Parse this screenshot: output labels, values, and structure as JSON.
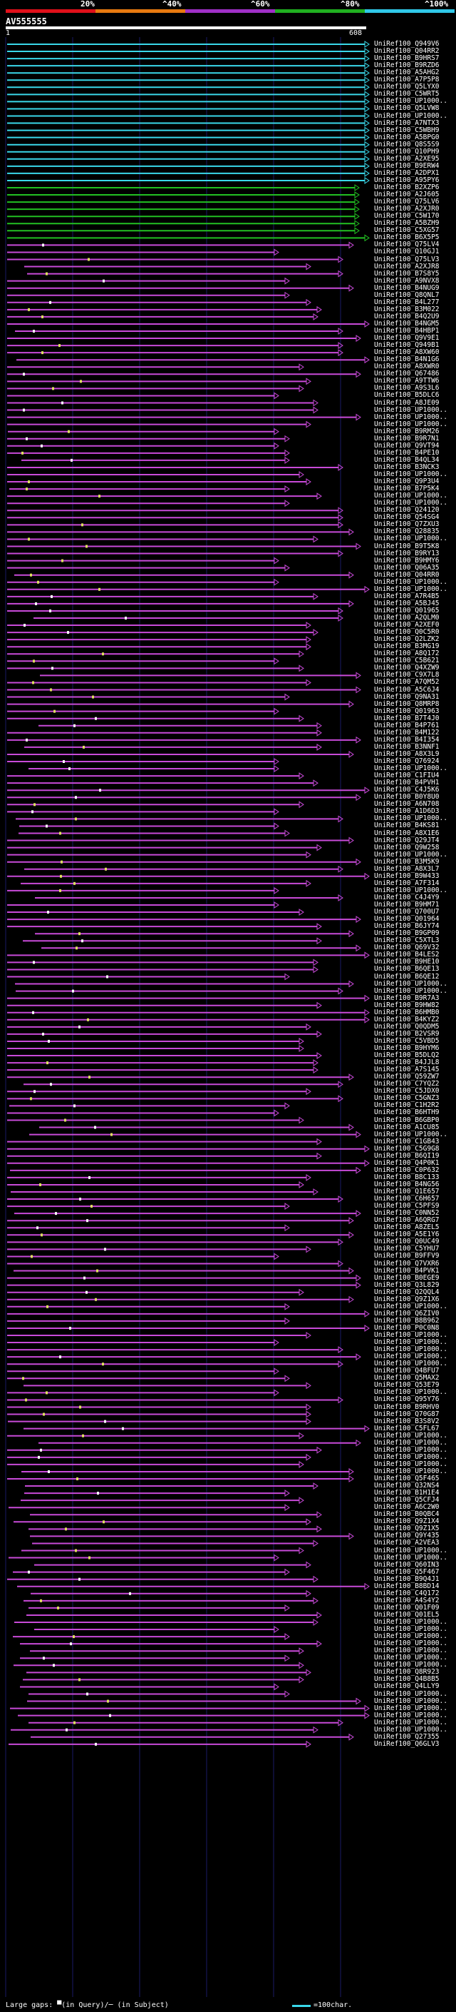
{
  "scale": {
    "labels": [
      "20%",
      "^40%",
      "^60%",
      "^80%",
      "^100%"
    ],
    "colors": [
      "#e0101a",
      "#e87a10",
      "#a030c8",
      "#20b020",
      "#30c8e8"
    ]
  },
  "query": {
    "name": "AV555555",
    "start": "1",
    "end": "608"
  },
  "hits": [
    "UniRef100_Q949V6",
    "UniRef100_Q04RR2",
    "UniRef100_B9HRS7",
    "UniRef100_B9RZD6",
    "UniRef100_A5AHG2",
    "UniRef100_A7P5P8",
    "UniRef100_Q5LYX0",
    "UniRef100_C5WRT5",
    "UniRef100_UP1000..",
    "UniRef100_Q5LVW8",
    "UniRef100_UP1000..",
    "UniRef100_A7NTX3",
    "UniRef100_C5WBH9",
    "UniRef100_A5BPG0",
    "UniRef100_Q8S5S9",
    "UniRef100_Q10PH9",
    "UniRef100_A2XE95",
    "UniRef100_B9ERW4",
    "UniRef100_A2DPX1",
    "UniRef100_A95PY6",
    "UniRef100_B2XZP6",
    "UniRef100_A2J605",
    "UniRef100_Q75LV6",
    "UniRef100_A2XJR0",
    "UniRef100_C5W170",
    "UniRef100_A5BZH9",
    "UniRef100_C5XG57",
    "UniRef100_B6X5P5",
    "UniRef100_Q75LV4",
    "UniRef100_Q10GJ1",
    "UniRef100_Q75LV3",
    "UniRef100_A2XJR8",
    "UniRef100_B7S8Y5",
    "UniRef100_A9NVX8",
    "UniRef100_B4NUG9",
    "UniRef100_Q8QNL7",
    "UniRef100_B4L277",
    "UniRef100_B3M022",
    "UniRef100_B4Q2U9",
    "UniRef100_B4NGM5",
    "UniRef100_B4HBP1",
    "UniRef100_Q9V9E1",
    "UniRef100_Q949B1",
    "UniRef100_A8XW60",
    "UniRef100_B4N1G6",
    "UniRef100_A8XWR0",
    "UniRef100_Q67486",
    "UniRef100_A9TTW6",
    "UniRef100_A9S3L6",
    "UniRef100_B5DLC6",
    "UniRef100_A8JE09",
    "UniRef100_UP1000..",
    "UniRef100_UP1000..",
    "UniRef100_UP1000..",
    "UniRef100_B9RM26",
    "UniRef100_B9R7N1",
    "UniRef100_Q9VT94",
    "UniRef100_B4PE10",
    "UniRef100_B4QL34",
    "UniRef100_B3NCK3",
    "UniRef100_UP1000..",
    "UniRef100_Q9P3U4",
    "UniRef100_B7P5K4",
    "UniRef100_UP1000..",
    "UniRef100_UP1000..",
    "UniRef100_Q24120",
    "UniRef100_Q54SG4",
    "UniRef100_Q7ZXU3",
    "UniRef100_Q28835",
    "UniRef100_UP1000..",
    "UniRef100_B9T5K8",
    "UniRef100_B9RY13",
    "UniRef100_B9HMY6",
    "UniRef100_Q06A35",
    "UniRef100_Q04RR0",
    "UniRef100_UP1000..",
    "UniRef100_UP1000..",
    "UniRef100_A7R4B5",
    "UniRef100_A5BJ45",
    "UniRef100_Q01965",
    "UniRef100_A2QLM0",
    "UniRef100_A2XEF0",
    "UniRef100_Q0C5R0",
    "UniRef100_Q2LZK2",
    "UniRef100_B3MG19",
    "UniRef100_A8Q172",
    "UniRef100_C5B621",
    "UniRef100_Q4XZW9",
    "UniRef100_C9X7L8",
    "UniRef100_A7QM52",
    "UniRef100_A5C6J4",
    "UniRef100_Q9NA31",
    "UniRef100_Q8MRP8",
    "UniRef100_Q01963",
    "UniRef100_B7T4J0",
    "UniRef100_B4P761",
    "UniRef100_B4M122",
    "UniRef100_B4I354",
    "UniRef100_B3NNF1",
    "UniRef100_A8X3L9",
    "UniRef100_Q76924",
    "UniRef100_UP1000..",
    "UniRef100_C1FIU4",
    "UniRef100_B4PVH1",
    "UniRef100_C4J5K6",
    "UniRef100_B0Y8U0",
    "UniRef100_A6N708",
    "UniRef100_A1D6D3",
    "UniRef100_UP1000..",
    "UniRef100_B4KS81",
    "UniRef100_A8X1E6",
    "UniRef100_Q29JT4",
    "UniRef100_Q9W258",
    "UniRef100_UP1000..",
    "UniRef100_B3M5K9",
    "UniRef100_A8X3L7",
    "UniRef100_B9W433",
    "UniRef100_A7F314",
    "UniRef100_UP1000..",
    "UniRef100_C4J4Y9",
    "UniRef100_B9HM71",
    "UniRef100_Q700U7",
    "UniRef100_Q01964",
    "UniRef100_B6JY74",
    "UniRef100_B9GP09",
    "UniRef100_C5XTL3",
    "UniRef100_Q69V32",
    "UniRef100_B4LES2",
    "UniRef100_B9HE10",
    "UniRef100_B6QE13",
    "UniRef100_B6QE12",
    "UniRef100_UP1000..",
    "UniRef100_UP1000..",
    "UniRef100_B9R7A3",
    "UniRef100_B9HW82",
    "UniRef100_B6HMB0",
    "UniRef100_B4KYZ2",
    "UniRef100_Q0QDM5",
    "UniRef100_B2VSR9",
    "UniRef100_C5VBD5",
    "UniRef100_B9HYM6",
    "UniRef100_B5DLQ2",
    "UniRef100_B4JJL8",
    "UniRef100_A7S145",
    "UniRef100_Q59ZW7",
    "UniRef100_C7YQZ2",
    "UniRef100_C5JDX0",
    "UniRef100_C5GNZ3",
    "UniRef100_C1H2R2",
    "UniRef100_B6HTH9",
    "UniRef100_B6GBP0",
    "UniRef100_A1CU85",
    "UniRef100_UP1000..",
    "UniRef100_C1GB43",
    "UniRef100_C5G9G8",
    "UniRef100_B6QI19",
    "UniRef100_Q4P0K1",
    "UniRef100_C0P632",
    "UniRef100_B8C133",
    "UniRef100_B4NG56",
    "UniRef100_Q1E657",
    "UniRef100_C6H657",
    "UniRef100_C5PFS9",
    "UniRef100_C0NN52",
    "UniRef100_A6QRG7",
    "UniRef100_A8ZEL5",
    "UniRef100_A5E1Y6",
    "UniRef100_Q0UC49",
    "UniRef100_C5YHU7",
    "UniRef100_B9FFV9",
    "UniRef100_Q7VXR6",
    "UniRef100_B4PVK1",
    "UniRef100_B0EGE9",
    "UniRef100_Q3L829",
    "UniRef100_Q2QQL4",
    "UniRef100_Q9Z1X6",
    "UniRef100_UP1000..",
    "UniRef100_Q6ZIV0",
    "UniRef100_B8B962",
    "UniRef100_P0C0N8",
    "UniRef100_UP1000..",
    "UniRef100_UP1000..",
    "UniRef100_UP1000..",
    "UniRef100_UP1000..",
    "UniRef100_UP1000..",
    "UniRef100_Q4BFU7",
    "UniRef100_Q5MAX2",
    "UniRef100_Q53E79",
    "UniRef100_UP1000..",
    "UniRef100_Q95Y76",
    "UniRef100_B9RHV0",
    "UniRef100_Q70G87",
    "UniRef100_B3S8V2",
    "UniRef100_C5FL67",
    "UniRef100_UP1000..",
    "UniRef100_UP1000..",
    "UniRef100_UP1000..",
    "UniRef100_UP1000..",
    "UniRef100_UP1000..",
    "UniRef100_UP1000..",
    "UniRef100_Q5F465",
    "UniRef100_Q32NS4",
    "UniRef100_B1H1E4",
    "UniRef100_Q5CFJ4",
    "UniRef100_A6C2W0",
    "UniRef100_B0QBC4",
    "UniRef100_Q9Z1X4",
    "UniRef100_Q9Z1X5",
    "UniRef100_Q9Y435",
    "UniRef100_A2VEA3",
    "UniRef100_UP1000..",
    "UniRef100_UP1000..",
    "UniRef100_Q60IN3",
    "UniRef100_Q5F467",
    "UniRef100_B9Q4J1",
    "UniRef100_B8BD14",
    "UniRef100_C4Q172",
    "UniRef100_A4S4Y2",
    "UniRef100_Q01F09",
    "UniRef100_Q01EL5",
    "UniRef100_UP1000..",
    "UniRef100_UP1000..",
    "UniRef100_UP1000..",
    "UniRef100_UP1000..",
    "UniRef100_UP1000..",
    "UniRef100_UP1000..",
    "UniRef100_UP1000..",
    "UniRef100_Q8R923",
    "UniRef100_Q4B8B5",
    "UniRef100_Q4LLY9",
    "UniRef100_UP1000..",
    "UniRef100_UP1000..",
    "UniRef100_UP1000..",
    "UniRef100_UP1000..",
    "UniRef100_UP1000..",
    "UniRef100_UP1000..",
    "UniRef100_Q27355",
    "UniRef100_Q6GLV3"
  ],
  "legend": {
    "text": "Large gaps: ▀(in Query)/─ (in Subject)",
    "key": "=100char."
  }
}
